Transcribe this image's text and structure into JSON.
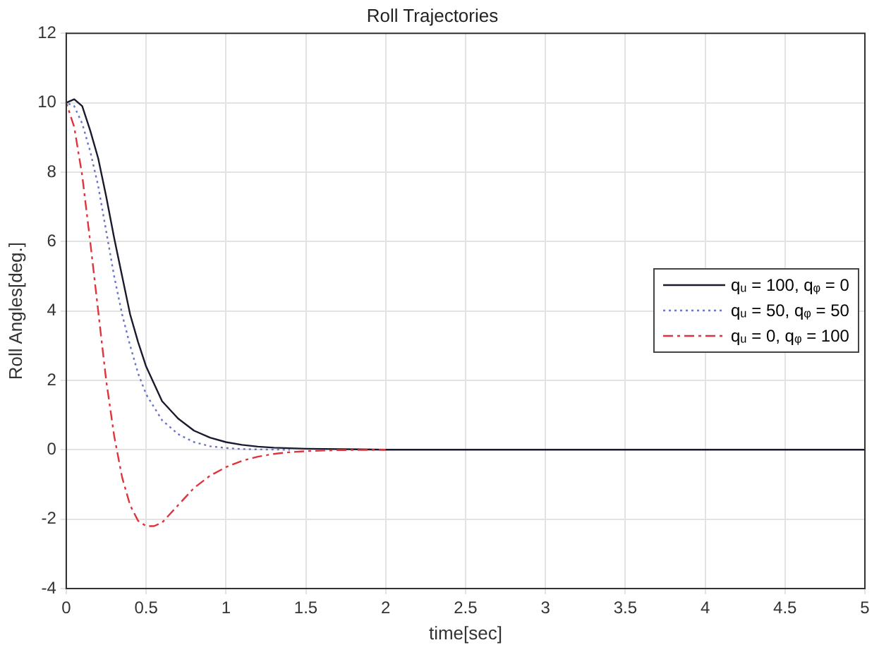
{
  "chart_data": {
    "type": "line",
    "title": "Roll Trajectories",
    "xlabel": "time[sec]",
    "ylabel": "Roll Angles[deg.]",
    "xlim": [
      0,
      5
    ],
    "xticks": [
      0,
      0.5,
      1,
      1.5,
      2,
      2.5,
      3,
      3.5,
      4,
      4.5,
      5
    ],
    "ylim": [
      -4,
      12
    ],
    "yticks": [
      -4,
      -2,
      0,
      2,
      4,
      6,
      8,
      10,
      12
    ],
    "grid": true,
    "legend": "right",
    "marker": "none",
    "series": [
      {
        "name": "qᵤ = 100, qᵩ = 0",
        "color": "#1a1a2e",
        "line_style": "solid",
        "x": [
          0,
          0.05,
          0.1,
          0.15,
          0.2,
          0.25,
          0.3,
          0.35,
          0.4,
          0.45,
          0.5,
          0.6,
          0.7,
          0.8,
          0.9,
          1,
          1.1,
          1.2,
          1.3,
          1.5,
          2,
          3,
          4,
          5
        ],
        "values": [
          10,
          10.1,
          9.9,
          9.2,
          8.4,
          7.3,
          6.1,
          5,
          3.9,
          3.1,
          2.4,
          1.4,
          0.9,
          0.55,
          0.35,
          0.22,
          0.14,
          0.09,
          0.06,
          0.03,
          0,
          0,
          0,
          0
        ]
      },
      {
        "name": "qᵤ = 50, qᵩ = 50",
        "color": "#6b73c9",
        "line_style": "dotted",
        "x": [
          0,
          0.05,
          0.1,
          0.15,
          0.2,
          0.25,
          0.3,
          0.35,
          0.4,
          0.45,
          0.5,
          0.6,
          0.7,
          0.8,
          0.9,
          1,
          1.1,
          1.2,
          1.4
        ],
        "values": [
          10,
          9.9,
          9.4,
          8.6,
          7.6,
          6.3,
          5,
          3.9,
          3,
          2.2,
          1.6,
          0.85,
          0.45,
          0.22,
          0.1,
          0.05,
          0.02,
          0.01,
          0
        ]
      },
      {
        "name": "qᵤ = 0, qᵩ = 100",
        "color": "#e0343c",
        "line_style": "dashed",
        "x": [
          0,
          0.05,
          0.1,
          0.15,
          0.2,
          0.25,
          0.3,
          0.35,
          0.4,
          0.45,
          0.5,
          0.55,
          0.6,
          0.65,
          0.7,
          0.8,
          0.9,
          1,
          1.1,
          1.2,
          1.3,
          1.4,
          1.5,
          1.7,
          2
        ],
        "values": [
          10,
          9.3,
          7.9,
          6,
          4,
          2,
          0.4,
          -0.8,
          -1.6,
          -2.05,
          -2.2,
          -2.2,
          -2.1,
          -1.85,
          -1.6,
          -1.1,
          -0.75,
          -0.5,
          -0.32,
          -0.2,
          -0.12,
          -0.07,
          -0.04,
          -0.01,
          0
        ]
      }
    ]
  }
}
